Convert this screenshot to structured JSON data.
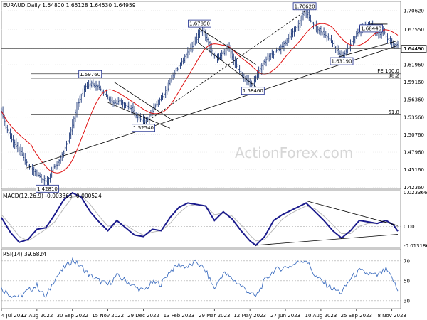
{
  "header": {
    "price": "EURAUD.Daily  1.64800 1.65128 1.64530 1.64959",
    "macd": "MACD(12,26,9) -0.003365 -0.000524",
    "rsi": "RSI(14) 39.6824"
  },
  "watermark": "ActionForex.com",
  "colors": {
    "price": "#1f3a7a",
    "ma": "#e01010",
    "macd": "#1a1a8c",
    "macd_signal": "#b8b8b8",
    "rsi": "#3f6fc0",
    "grid": "#e6e6e6",
    "hline": "#444444",
    "label_box": "#1a2a8c"
  },
  "chart_data": [
    {
      "type": "candlestick",
      "title": "EURAUD.Daily",
      "ylim": [
        1.4205,
        1.7207
      ],
      "y_ticks": [
        "1.70620",
        "1.67550",
        "1.64490",
        "1.61960",
        "1.59160",
        "1.56360",
        "1.53560",
        "1.50760",
        "1.47960",
        "1.45160",
        "1.42360"
      ],
      "current_price": "1.64490",
      "x_tick_labels": [
        "4 Jul 2022",
        "17 Aug 2022",
        "30 Sep 2022",
        "15 Nov 2022",
        "29 Dec 2022",
        "13 Feb 2023",
        "29 Mar 2023",
        "12 May 2023",
        "27 Jun 2023",
        "10 Aug 2023",
        "25 Sep 2023",
        "8 Nov 2023"
      ],
      "close_path": [
        [
          0,
          1.545
        ],
        [
          3,
          1.52
        ],
        [
          8,
          1.495
        ],
        [
          14,
          1.475
        ],
        [
          19,
          1.455
        ],
        [
          24,
          1.445
        ],
        [
          28,
          1.436
        ],
        [
          31,
          1.431
        ],
        [
          34,
          1.45
        ],
        [
          38,
          1.462
        ],
        [
          42,
          1.48
        ],
        [
          45,
          1.498
        ],
        [
          48,
          1.525
        ],
        [
          51,
          1.552
        ],
        [
          54,
          1.571
        ],
        [
          57,
          1.585
        ],
        [
          61,
          1.59
        ],
        [
          65,
          1.585
        ],
        [
          69,
          1.575
        ],
        [
          73,
          1.565
        ],
        [
          76,
          1.558
        ],
        [
          80,
          1.562
        ],
        [
          84,
          1.555
        ],
        [
          88,
          1.548
        ],
        [
          92,
          1.535
        ],
        [
          96,
          1.528
        ],
        [
          99,
          1.533
        ],
        [
          102,
          1.547
        ],
        [
          106,
          1.56
        ],
        [
          110,
          1.572
        ],
        [
          114,
          1.595
        ],
        [
          118,
          1.61
        ],
        [
          122,
          1.625
        ],
        [
          126,
          1.64
        ],
        [
          130,
          1.652
        ],
        [
          133,
          1.668
        ],
        [
          136,
          1.675
        ],
        [
          139,
          1.66
        ],
        [
          142,
          1.64
        ],
        [
          146,
          1.628
        ],
        [
          150,
          1.64
        ],
        [
          153,
          1.648
        ],
        [
          156,
          1.632
        ],
        [
          160,
          1.612
        ],
        [
          164,
          1.598
        ],
        [
          168,
          1.59
        ],
        [
          170,
          1.588
        ],
        [
          173,
          1.605
        ],
        [
          177,
          1.622
        ],
        [
          181,
          1.633
        ],
        [
          185,
          1.64
        ],
        [
          189,
          1.648
        ],
        [
          193,
          1.658
        ],
        [
          197,
          1.672
        ],
        [
          201,
          1.685
        ],
        [
          204,
          1.7
        ],
        [
          206,
          1.705
        ],
        [
          209,
          1.69
        ],
        [
          213,
          1.678
        ],
        [
          217,
          1.67
        ],
        [
          221,
          1.662
        ],
        [
          225,
          1.65
        ],
        [
          228,
          1.638
        ],
        [
          231,
          1.633
        ],
        [
          234,
          1.645
        ],
        [
          238,
          1.66
        ],
        [
          242,
          1.675
        ],
        [
          246,
          1.683
        ],
        [
          250,
          1.685
        ],
        [
          253,
          1.67
        ],
        [
          256,
          1.668
        ],
        [
          258,
          1.675
        ],
        [
          261,
          1.66
        ],
        [
          265,
          1.653
        ],
        [
          268,
          1.65
        ]
      ],
      "labels": [
        {
          "text": "1.70620",
          "x": 205,
          "y": 1.7062
        },
        {
          "text": "1.67850",
          "x": 134,
          "y": 1.6785
        },
        {
          "text": "1.68440",
          "x": 250,
          "y": 1.6844
        },
        {
          "text": "1.63190",
          "x": 230,
          "y": 1.6319
        },
        {
          "text": "1.59760",
          "x": 60,
          "y": 1.5976
        },
        {
          "text": "1.58460",
          "x": 170,
          "y": 1.5846
        },
        {
          "text": "1.52540",
          "x": 96,
          "y": 1.5254
        },
        {
          "text": "1.42810",
          "x": 31,
          "y": 1.4281
        }
      ],
      "fib_levels": [
        {
          "label": "FE 100.0",
          "y": 1.605
        },
        {
          "label": "38.2",
          "y": 1.5978
        },
        {
          "label": "61.8",
          "y": 1.5395
        }
      ]
    },
    {
      "type": "line",
      "title": "MACD(12,26,9)",
      "ylim": [
        -0.0145,
        0.0245
      ],
      "y_ticks": [
        "0.023366",
        "0.00",
        "-0.013186"
      ],
      "series": [
        {
          "name": "MACD",
          "values": [
            [
              0,
              0.006
            ],
            [
              6,
              -0.004
            ],
            [
              12,
              -0.011
            ],
            [
              18,
              -0.009
            ],
            [
              24,
              -0.002
            ],
            [
              30,
              -0.001
            ],
            [
              36,
              0.008
            ],
            [
              42,
              0.018
            ],
            [
              48,
              0.023
            ],
            [
              54,
              0.02
            ],
            [
              60,
              0.01
            ],
            [
              66,
              0.003
            ],
            [
              72,
              -0.003
            ],
            [
              78,
              0.004
            ],
            [
              84,
              -0.001
            ],
            [
              90,
              -0.006
            ],
            [
              96,
              -0.007
            ],
            [
              102,
              -0.002
            ],
            [
              108,
              -0.003
            ],
            [
              114,
              0.006
            ],
            [
              120,
              0.013
            ],
            [
              126,
              0.016
            ],
            [
              132,
              0.015
            ],
            [
              138,
              0.014
            ],
            [
              144,
              0.004
            ],
            [
              150,
              0.01
            ],
            [
              156,
              0.005
            ],
            [
              162,
              -0.003
            ],
            [
              168,
              -0.01
            ],
            [
              172,
              -0.013
            ],
            [
              178,
              -0.007
            ],
            [
              184,
              0.004
            ],
            [
              190,
              0.008
            ],
            [
              196,
              0.011
            ],
            [
              202,
              0.014
            ],
            [
              206,
              0.016
            ],
            [
              212,
              0.01
            ],
            [
              218,
              0.004
            ],
            [
              224,
              -0.003
            ],
            [
              230,
              -0.008
            ],
            [
              236,
              -0.003
            ],
            [
              242,
              0.004
            ],
            [
              248,
              0.003
            ],
            [
              254,
              0.002
            ],
            [
              260,
              0.004
            ],
            [
              265,
              0.001
            ],
            [
              268,
              -0.0034
            ]
          ]
        },
        {
          "name": "Signal",
          "values": [
            [
              0,
              0.008
            ],
            [
              6,
              0.001
            ],
            [
              12,
              -0.007
            ],
            [
              18,
              -0.01
            ],
            [
              24,
              -0.006
            ],
            [
              30,
              -0.002
            ],
            [
              36,
              0.003
            ],
            [
              42,
              0.012
            ],
            [
              48,
              0.02
            ],
            [
              54,
              0.021
            ],
            [
              60,
              0.015
            ],
            [
              66,
              0.007
            ],
            [
              72,
              0.0
            ],
            [
              78,
              0.001
            ],
            [
              84,
              0.001
            ],
            [
              90,
              -0.003
            ],
            [
              96,
              -0.006
            ],
            [
              102,
              -0.004
            ],
            [
              108,
              -0.003
            ],
            [
              114,
              0.002
            ],
            [
              120,
              0.009
            ],
            [
              126,
              0.014
            ],
            [
              132,
              0.015
            ],
            [
              138,
              0.014
            ],
            [
              144,
              0.008
            ],
            [
              150,
              0.009
            ],
            [
              156,
              0.007
            ],
            [
              162,
              0.001
            ],
            [
              168,
              -0.006
            ],
            [
              172,
              -0.01
            ],
            [
              178,
              -0.009
            ],
            [
              184,
              -0.002
            ],
            [
              190,
              0.005
            ],
            [
              196,
              0.009
            ],
            [
              202,
              0.012
            ],
            [
              206,
              0.014
            ],
            [
              212,
              0.012
            ],
            [
              218,
              0.007
            ],
            [
              224,
              0.001
            ],
            [
              230,
              -0.005
            ],
            [
              236,
              -0.005
            ],
            [
              242,
              0.0
            ],
            [
              248,
              0.002
            ],
            [
              254,
              0.002
            ],
            [
              260,
              0.003
            ],
            [
              265,
              0.002
            ],
            [
              268,
              -0.0005
            ]
          ]
        }
      ]
    },
    {
      "type": "line",
      "title": "RSI(14)",
      "ylim": [
        22,
        82
      ],
      "y_ticks": [
        "70",
        "50",
        "30"
      ],
      "series": [
        {
          "name": "RSI",
          "values": [
            [
              0,
              42
            ],
            [
              6,
              36
            ],
            [
              12,
              34
            ],
            [
              18,
              40
            ],
            [
              24,
              45
            ],
            [
              30,
              33
            ],
            [
              36,
              52
            ],
            [
              42,
              62
            ],
            [
              48,
              71
            ],
            [
              54,
              64
            ],
            [
              60,
              55
            ],
            [
              66,
              50
            ],
            [
              72,
              46
            ],
            [
              78,
              55
            ],
            [
              84,
              50
            ],
            [
              90,
              44
            ],
            [
              96,
              40
            ],
            [
              102,
              48
            ],
            [
              108,
              47
            ],
            [
              114,
              60
            ],
            [
              120,
              66
            ],
            [
              126,
              64
            ],
            [
              132,
              69
            ],
            [
              138,
              60
            ],
            [
              144,
              42
            ],
            [
              150,
              58
            ],
            [
              156,
              52
            ],
            [
              162,
              45
            ],
            [
              168,
              38
            ],
            [
              172,
              34
            ],
            [
              178,
              50
            ],
            [
              184,
              60
            ],
            [
              190,
              63
            ],
            [
              196,
              65
            ],
            [
              202,
              70
            ],
            [
              206,
              71
            ],
            [
              212,
              55
            ],
            [
              218,
              48
            ],
            [
              224,
              42
            ],
            [
              230,
              38
            ],
            [
              236,
              52
            ],
            [
              242,
              60
            ],
            [
              248,
              57
            ],
            [
              254,
              55
            ],
            [
              260,
              61
            ],
            [
              265,
              50
            ],
            [
              268,
              39.7
            ]
          ]
        }
      ]
    }
  ]
}
